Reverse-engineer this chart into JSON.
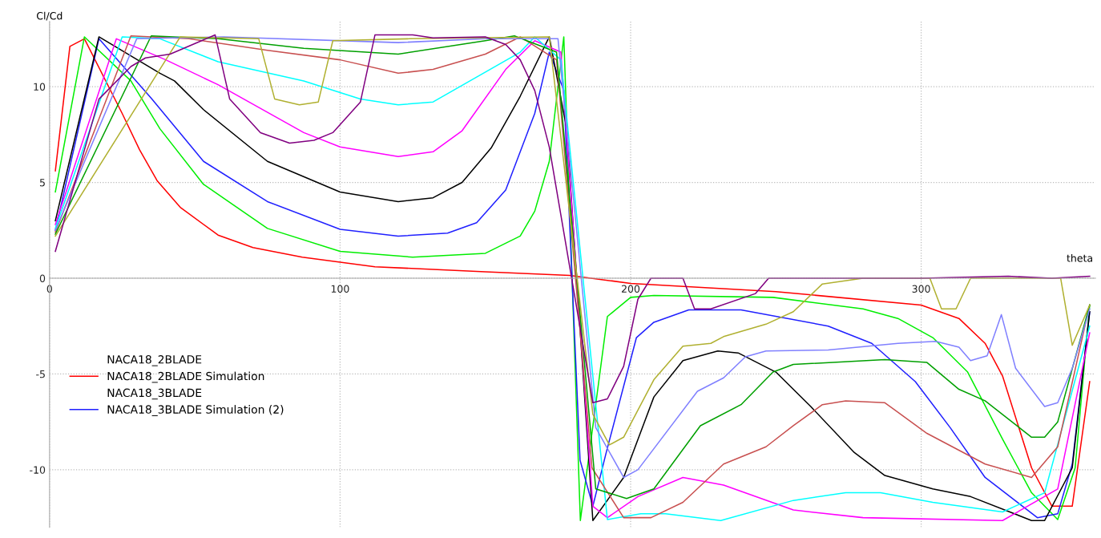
{
  "chart_data": {
    "type": "line",
    "xlabel": "theta",
    "ylabel": "Cl/Cd",
    "xlim": [
      0,
      360
    ],
    "ylim": [
      -13,
      13.4
    ],
    "xticks": [
      0,
      100,
      200,
      300
    ],
    "yticks": [
      -10,
      -5,
      0,
      5,
      10
    ],
    "grid": true,
    "legend": "bottom left",
    "line_style": "solid",
    "marker": "none",
    "annotations": [
      "NACA18_2BLADE",
      "NACA18_3BLADE"
    ],
    "series": [
      {
        "name": "NACA18_2BLADE Simulation",
        "color": "#ff0000",
        "x": [
          2,
          7,
          12,
          25,
          31,
          37,
          45,
          58,
          70,
          87,
          112,
          150,
          179,
          200,
          250,
          300,
          313,
          322,
          328,
          338,
          345,
          352,
          358
        ],
        "values": [
          5.6,
          12.1,
          12.5,
          8.6,
          6.7,
          5.1,
          3.7,
          2.25,
          1.6,
          1.1,
          0.6,
          0.33,
          0.15,
          -0.27,
          -0.7,
          -1.4,
          -2.1,
          -3.4,
          -5.1,
          -9.9,
          -11.9,
          -11.9,
          -5.4
        ]
      },
      {
        "color": "#00ee00",
        "x": [
          2,
          12,
          28,
          38,
          53,
          75,
          100,
          125,
          150,
          162,
          167,
          172,
          177,
          182.7,
          192,
          200,
          208,
          249,
          280,
          292,
          304,
          316,
          328,
          338,
          347,
          353,
          358
        ],
        "values": [
          4.5,
          12.6,
          10.3,
          7.8,
          4.9,
          2.6,
          1.4,
          1.1,
          1.3,
          2.2,
          3.5,
          6.1,
          12.6,
          -12.65,
          -2.0,
          -1.0,
          -0.9,
          -1.0,
          -1.6,
          -2.1,
          -3.1,
          -4.9,
          -8.4,
          -11.2,
          -12.6,
          -9.9,
          -1.4
        ]
      },
      {
        "name": "NACA18_3BLADE Simulation (2)",
        "color": "#2020ff",
        "x": [
          2,
          17,
          35,
          53,
          75,
          100,
          120,
          137,
          147,
          157,
          167,
          172,
          177,
          182.6,
          187,
          191.6,
          202,
          208,
          220,
          238,
          268,
          283,
          298,
          310,
          322,
          340,
          347,
          352,
          358
        ],
        "values": [
          2.5,
          12.5,
          9.4,
          6.1,
          4.0,
          2.55,
          2.2,
          2.35,
          2.9,
          4.6,
          8.6,
          11.8,
          9.8,
          -9.5,
          -11.9,
          -9.1,
          -3.1,
          -2.3,
          -1.65,
          -1.65,
          -2.5,
          -3.4,
          -5.4,
          -7.8,
          -10.4,
          -12.5,
          -12.3,
          -9.7,
          -1.75
        ]
      },
      {
        "color": "#000000",
        "x": [
          2,
          17,
          38,
          43,
          53,
          75,
          100,
          120,
          132,
          142,
          152,
          162,
          172,
          178,
          187,
          197.6,
          208,
          218,
          230,
          237,
          250,
          262,
          277,
          287.5,
          304,
          317,
          338,
          342.5,
          352,
          358
        ],
        "values": [
          3.0,
          12.6,
          10.7,
          10.3,
          8.8,
          6.1,
          4.5,
          4.0,
          4.2,
          5.0,
          6.8,
          9.5,
          12.6,
          7.8,
          -12.65,
          -10.4,
          -6.2,
          -4.3,
          -3.8,
          -3.9,
          -4.9,
          -6.7,
          -9.1,
          -10.3,
          -11.0,
          -11.4,
          -12.65,
          -12.65,
          -9.9,
          -1.75
        ]
      },
      {
        "color": "#ff00ff",
        "x": [
          2,
          23,
          40,
          58,
          87.5,
          100,
          120,
          132,
          142,
          157,
          167,
          176,
          187,
          192,
          202.5,
          218,
          232,
          256,
          280,
          328,
          347,
          358
        ],
        "values": [
          2.8,
          12.5,
          11.4,
          10.1,
          7.6,
          6.85,
          6.35,
          6.6,
          7.7,
          10.9,
          12.4,
          11.8,
          -11.9,
          -12.5,
          -11.4,
          -10.4,
          -10.8,
          -12.1,
          -12.5,
          -12.65,
          -11.0,
          -2.85
        ]
      },
      {
        "color": "#00ffff",
        "x": [
          2,
          25,
          38,
          58,
          87.5,
          107,
          120,
          132,
          147,
          162,
          167,
          176,
          192,
          203.5,
          212,
          231,
          256,
          274,
          286,
          304,
          328,
          342.5,
          358
        ],
        "values": [
          2.6,
          12.6,
          12.5,
          11.3,
          10.3,
          9.35,
          9.05,
          9.2,
          10.5,
          11.8,
          12.6,
          11.4,
          -12.6,
          -12.3,
          -12.3,
          -12.65,
          -11.6,
          -11.2,
          -11.2,
          -11.7,
          -12.2,
          -11.2,
          -2.5
        ]
      },
      {
        "color": "#c85050",
        "x": [
          2,
          28,
          48,
          75,
          100,
          120,
          132,
          150,
          162,
          174.5,
          186.7,
          197.6,
          207,
          218,
          232,
          246.6,
          256,
          266,
          274,
          287.5,
          302,
          322,
          338,
          347,
          358
        ],
        "values": [
          2.4,
          12.65,
          12.5,
          11.9,
          11.4,
          10.7,
          10.9,
          11.7,
          12.6,
          11.4,
          -9.9,
          -12.5,
          -12.5,
          -11.7,
          -9.7,
          -8.8,
          -7.7,
          -6.6,
          -6.4,
          -6.5,
          -8.1,
          -9.7,
          -10.4,
          -8.8,
          -1.4
        ]
      },
      {
        "color": "#00a000",
        "x": [
          2,
          35,
          58,
          87.5,
          120,
          150,
          160,
          174.5,
          188,
          198.6,
          208,
          224,
          238,
          249,
          256,
          287.5,
          302,
          313,
          322,
          338,
          342.5,
          347,
          358
        ],
        "values": [
          2.3,
          12.65,
          12.5,
          12.0,
          11.7,
          12.4,
          12.65,
          11.8,
          -11.0,
          -11.5,
          -11.0,
          -7.7,
          -6.6,
          -4.9,
          -4.5,
          -4.25,
          -4.4,
          -5.8,
          -6.4,
          -8.3,
          -8.3,
          -7.5,
          -1.4
        ]
      },
      {
        "color": "#8080ff",
        "x": [
          2,
          30,
          60,
          120,
          150,
          175,
          188,
          197.6,
          202.5,
          223,
          232,
          239.5,
          246.6,
          268,
          292,
          305,
          313,
          317,
          322.7,
          327.6,
          332.5,
          342.5,
          347,
          352,
          358
        ],
        "values": [
          2.5,
          12.5,
          12.6,
          12.3,
          12.5,
          12.5,
          -7.8,
          -10.4,
          -10.0,
          -5.9,
          -5.2,
          -4.1,
          -3.8,
          -3.75,
          -3.4,
          -3.3,
          -3.6,
          -4.3,
          -4.05,
          -1.9,
          -4.7,
          -6.7,
          -6.5,
          -4.7,
          -1.6
        ]
      },
      {
        "color": "#b0b030",
        "x": [
          2,
          45,
          72,
          77.5,
          86,
          92.5,
          97.5,
          124,
          172,
          187,
          192.7,
          197.6,
          208,
          218,
          227.6,
          232,
          246.6,
          256,
          266,
          280,
          303,
          307,
          312,
          317,
          348,
          352,
          358
        ],
        "values": [
          2.2,
          12.6,
          12.5,
          9.35,
          9.05,
          9.2,
          12.4,
          12.5,
          12.6,
          -7.1,
          -8.7,
          -8.3,
          -5.3,
          -3.55,
          -3.4,
          -3.05,
          -2.4,
          -1.75,
          -0.3,
          0,
          0,
          -1.6,
          -1.6,
          0,
          0,
          -3.5,
          -1.4
        ]
      },
      {
        "color": "#800080",
        "x": [
          2,
          17,
          28,
          33,
          41.5,
          57,
          62,
          72.6,
          82.6,
          91,
          97.5,
          107,
          112,
          125,
          132,
          150,
          157,
          162,
          167,
          172,
          187,
          192,
          197.6,
          202.5,
          207,
          218,
          222,
          227.6,
          243,
          247.5,
          300,
          330,
          345,
          358
        ],
        "values": [
          1.4,
          9.35,
          11.05,
          11.5,
          11.7,
          12.7,
          9.35,
          7.6,
          7.05,
          7.2,
          7.6,
          9.2,
          12.7,
          12.7,
          12.55,
          12.6,
          12.2,
          11.4,
          9.8,
          6.85,
          -6.5,
          -6.3,
          -4.6,
          -1.1,
          0,
          0,
          -1.6,
          -1.6,
          -0.8,
          0,
          0,
          0.1,
          0,
          0.1
        ]
      }
    ]
  }
}
